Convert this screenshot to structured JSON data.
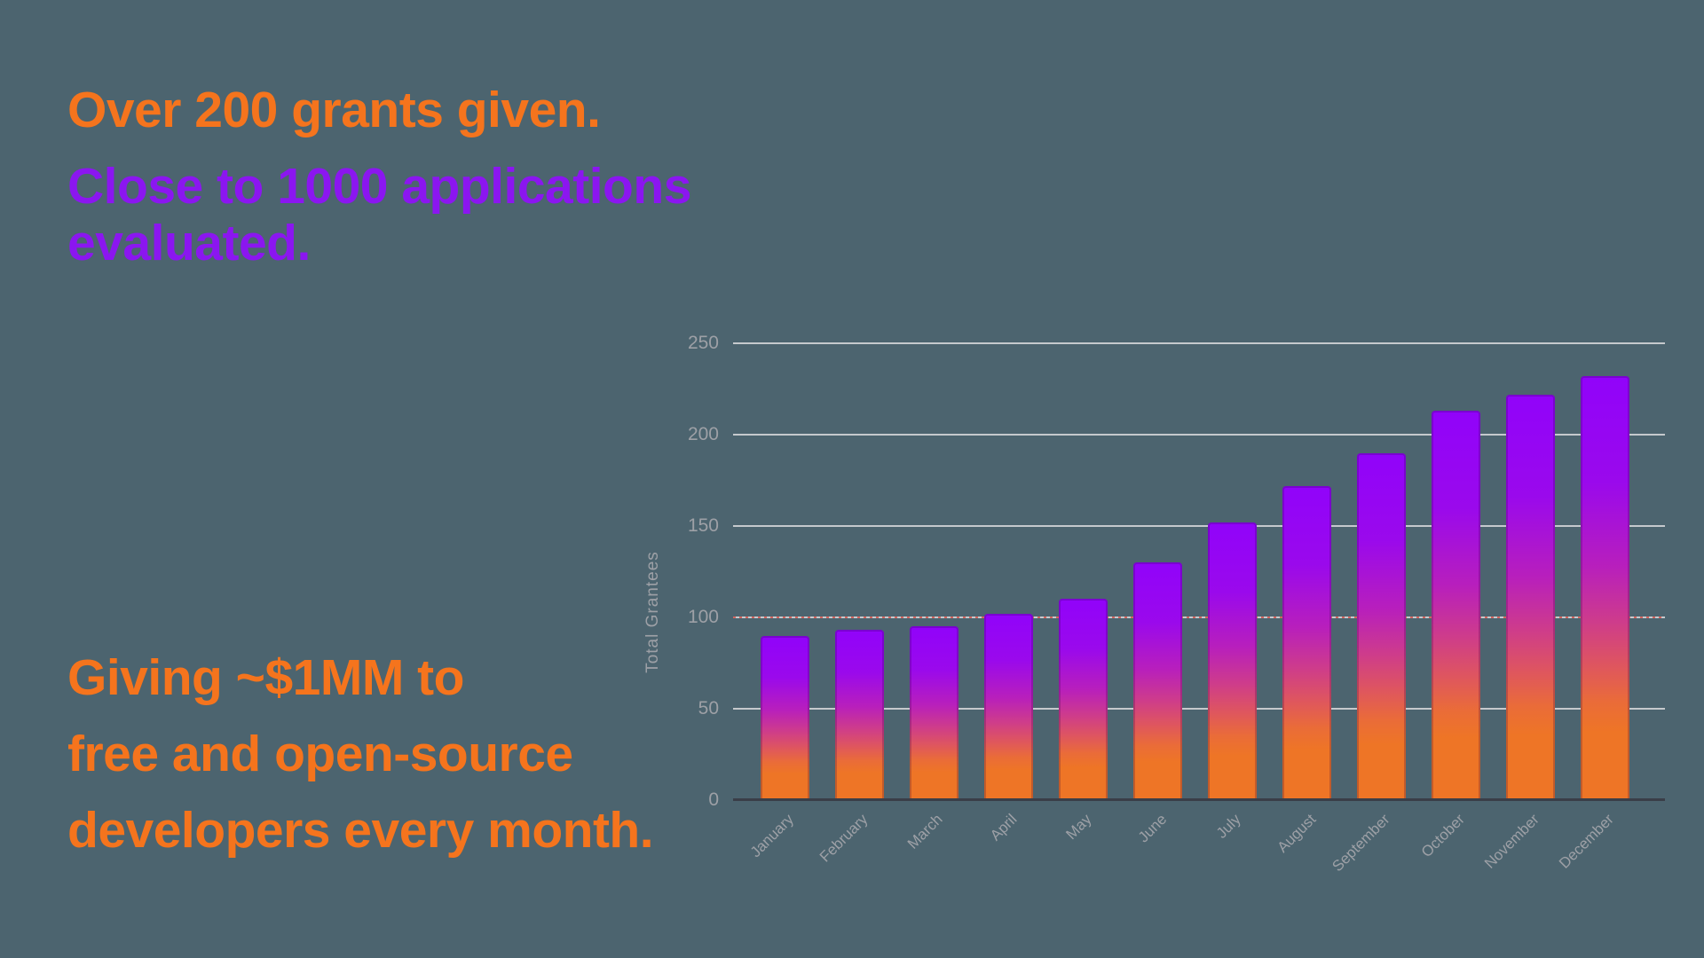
{
  "colors": {
    "background": "#4c646f",
    "accent_orange": "#f5741d",
    "accent_purple": "#8b16f0",
    "tick_gray": "#9da0a6",
    "gridline_gray": "#c5c9cd",
    "axis_dark": "#3a3e48",
    "target_red": "#d2655f",
    "bar_gradient_top": "#9103fa",
    "bar_gradient_mid": "#ce3c8b",
    "bar_gradient_bottom": "#ee7526"
  },
  "headline": {
    "grants_line": "Over 200 grants given.",
    "applications_lines": [
      "Close to 1000 applications",
      "evaluated."
    ]
  },
  "footline": {
    "lines": [
      "Giving ~$1MM to",
      "free and open-source",
      "developers every month."
    ]
  },
  "chart_data": {
    "type": "bar",
    "title": "",
    "xlabel": "",
    "ylabel": "Total Grantees",
    "categories": [
      "January",
      "February",
      "March",
      "April",
      "May",
      "June",
      "July",
      "August",
      "September",
      "October",
      "November",
      "December"
    ],
    "values": [
      90,
      93,
      95,
      102,
      110,
      130,
      152,
      172,
      190,
      213,
      222,
      232
    ],
    "ylim": [
      0,
      250
    ],
    "y_ticks": [
      0,
      50,
      100,
      150,
      200,
      250
    ],
    "grid": true,
    "legend": false,
    "annotation_line": {
      "y": 100,
      "style": "dashed"
    },
    "bar_color": "purple-to-orange vertical gradient"
  }
}
